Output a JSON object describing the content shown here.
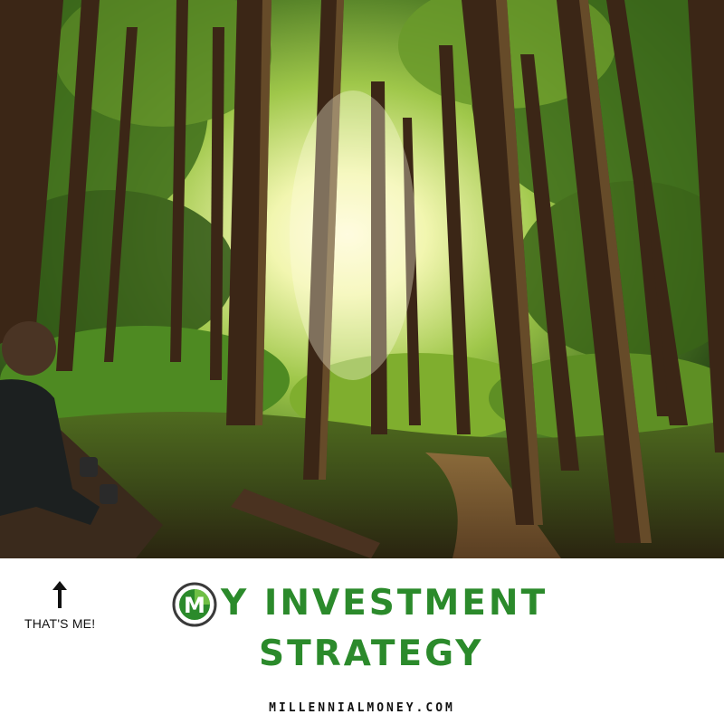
{
  "caption": {
    "arrow_note": "THAT'S ME!",
    "title_line1": "Y INVESTMENT",
    "title_line2": "STRATEGY",
    "logo_letter": "M",
    "site": "MILLENNIALMONEY.COM"
  },
  "colors": {
    "brand_green": "#2b8a2b",
    "logo_ring": "#3a3a3a",
    "text_dark": "#111111"
  },
  "icons": {
    "arrow": "arrow-up-icon",
    "logo": "millennial-money-logo"
  }
}
